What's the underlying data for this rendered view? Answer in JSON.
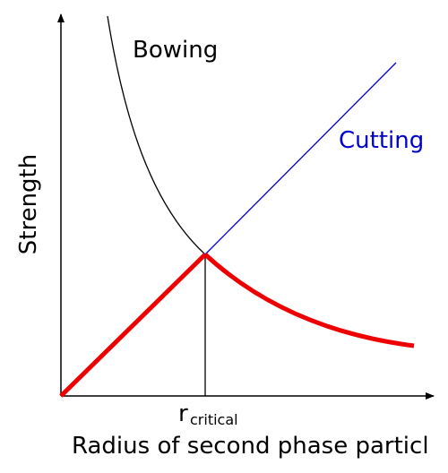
{
  "curves": {
    "bowing": "Bowing",
    "cutting": "Cutting"
  },
  "axes": {
    "y_label": "Strength",
    "x_label": "Radius of second phase particl"
  },
  "marker": {
    "symbol": "r",
    "subscript": "critical"
  }
}
